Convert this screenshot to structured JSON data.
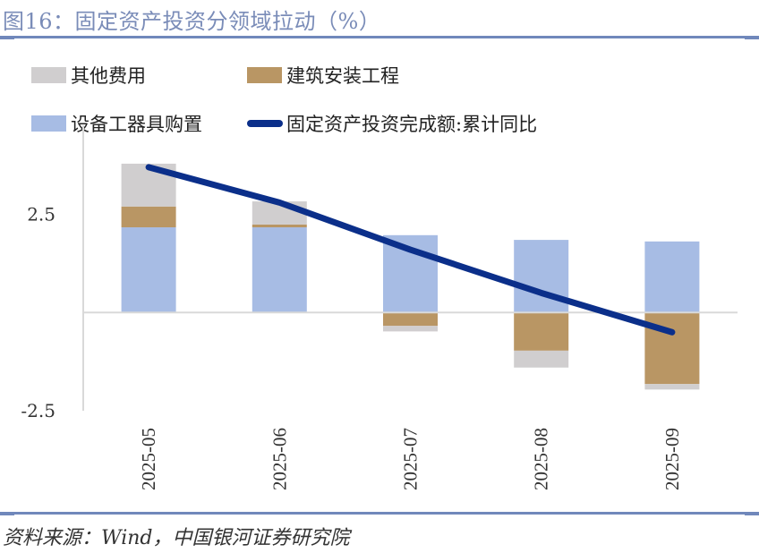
{
  "title": "图16：固定资产投资分领域拉动（%）",
  "source": "资料来源：Wind，中国银河证券研究院",
  "colors": {
    "rule": "#7088bb",
    "title": "#7a8cb8",
    "other": "#d0cecf",
    "construction": "#b99664",
    "equipment": "#a7bce4",
    "line": "#0b2f8a",
    "axis": "#d9d9d9"
  },
  "legend": [
    {
      "key": "other",
      "label": "其他费用",
      "kind": "swatch"
    },
    {
      "key": "construction",
      "label": "建筑安装工程",
      "kind": "swatch"
    },
    {
      "key": "equipment",
      "label": "设备工器具购置",
      "kind": "swatch"
    },
    {
      "key": "line",
      "label": "固定资产投资完成额:累计同比",
      "kind": "line"
    }
  ],
  "chart_data": {
    "type": "bar",
    "stacked": true,
    "title": "图16：固定资产投资分领域拉动（%）",
    "xlabel": "",
    "ylabel": "",
    "categories": [
      "2025-05",
      "2025-06",
      "2025-07",
      "2025-08",
      "2025-09"
    ],
    "series": [
      {
        "name": "设备工器具购置",
        "key": "equipment",
        "type": "bar",
        "values": [
          2.17,
          2.17,
          1.97,
          1.85,
          1.81
        ]
      },
      {
        "name": "建筑安装工程",
        "key": "construction",
        "type": "bar",
        "values": [
          0.53,
          0.07,
          -0.34,
          -0.97,
          -1.82
        ]
      },
      {
        "name": "其他费用",
        "key": "other",
        "type": "bar",
        "values": [
          1.09,
          0.59,
          -0.14,
          -0.43,
          -0.14
        ]
      },
      {
        "name": "固定资产投资完成额:累计同比",
        "key": "line",
        "type": "line",
        "values": [
          3.7,
          2.8,
          1.6,
          0.5,
          -0.5
        ]
      }
    ],
    "ylim": [
      -2.5,
      5
    ],
    "yticks_shown": [
      "2.5",
      "-2.5"
    ],
    "ytick_values": [
      2.5,
      -2.5
    ],
    "grid": false,
    "legend_position": "top"
  }
}
